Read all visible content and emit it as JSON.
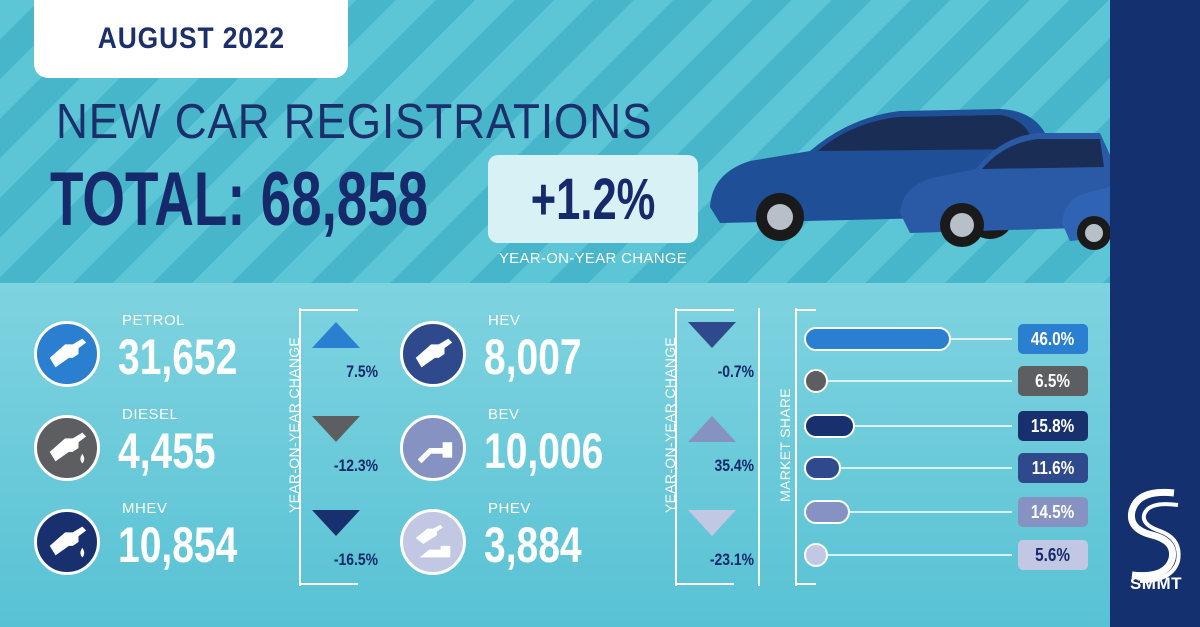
{
  "header": {
    "date": "AUGUST 2022",
    "title": "NEW CAR REGISTRATIONS",
    "total_text": "TOTAL: 68,858",
    "yoy_change": "+1.2%",
    "yoy_label": "YEAR-ON-YEAR CHANGE"
  },
  "side_labels": {
    "yoy_left": "YEAR-ON-YEAR CHANGE",
    "yoy_right": "YEAR-ON-YEAR CHANGE",
    "market_share": "MARKET SHARE"
  },
  "colors": {
    "navy": "#16296a",
    "petrol": "#2b7fd0",
    "diesel": "#5c5e62",
    "mhev": "#18306e",
    "hev": "#2f4a8c",
    "bev": "#8592c2",
    "phev": "#c2c8e4"
  },
  "brand": {
    "name": "SMMT"
  },
  "chart_data": {
    "type": "bar",
    "categories": [
      "PETROL",
      "DIESEL",
      "MHEV",
      "HEV",
      "BEV",
      "PHEV"
    ],
    "registrations": [
      "31,652",
      "4,455",
      "10,854",
      "8,007",
      "10,006",
      "3,884"
    ],
    "yoy_change": [
      "7.5%",
      "-12.3%",
      "-16.5%",
      "-0.7%",
      "35.4%",
      "-23.1%"
    ],
    "yoy_direction": [
      "up",
      "down",
      "down",
      "down",
      "up",
      "down"
    ],
    "share_labels": [
      "46.0%",
      "6.5%",
      "15.8%",
      "11.6%",
      "14.5%",
      "5.6%"
    ],
    "share_values": [
      46.0,
      6.5,
      15.8,
      11.6,
      14.5,
      5.6
    ],
    "share_scale_max": 100,
    "icons": [
      "fuel-nozzle-icon",
      "fuel-nozzle-drop-icon",
      "fuel-nozzle-drop-icon",
      "fuel-nozzle-icon",
      "charging-plug-icon",
      "plug-and-nozzle-icon"
    ]
  }
}
